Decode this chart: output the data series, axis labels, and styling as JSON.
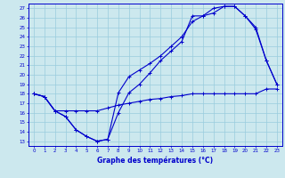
{
  "xlabel": "Graphe des températures (°C)",
  "bg_color": "#cce8ee",
  "grid_color": "#99ccdd",
  "line_color": "#0000cc",
  "ylim": [
    12.5,
    27.5
  ],
  "xlim": [
    -0.5,
    23.5
  ],
  "yticks": [
    13,
    14,
    15,
    16,
    17,
    18,
    19,
    20,
    21,
    22,
    23,
    24,
    25,
    26,
    27
  ],
  "xticks": [
    0,
    1,
    2,
    3,
    4,
    5,
    6,
    7,
    8,
    9,
    10,
    11,
    12,
    13,
    14,
    15,
    16,
    17,
    18,
    19,
    20,
    21,
    22,
    23
  ],
  "series1_x": [
    0,
    1,
    2,
    3,
    4,
    5,
    6,
    7,
    8,
    9,
    10,
    11,
    12,
    13,
    14,
    15,
    16,
    17,
    18,
    19,
    20,
    21,
    22,
    23
  ],
  "series1_y": [
    18,
    17.7,
    16.2,
    15.6,
    14.2,
    13.5,
    13.0,
    13.2,
    16.0,
    18.1,
    19.0,
    20.2,
    21.5,
    22.5,
    23.5,
    26.2,
    26.2,
    27.0,
    27.2,
    27.2,
    26.2,
    24.8,
    21.5,
    19.0
  ],
  "series2_x": [
    0,
    1,
    2,
    3,
    4,
    5,
    6,
    7,
    8,
    9,
    10,
    11,
    12,
    13,
    14,
    15,
    16,
    17,
    18,
    19,
    20,
    21,
    22,
    23
  ],
  "series2_y": [
    18,
    17.7,
    16.2,
    15.6,
    14.2,
    13.5,
    13.0,
    13.2,
    18.1,
    19.8,
    20.5,
    21.2,
    22.0,
    23.0,
    24.0,
    25.6,
    26.2,
    26.5,
    27.2,
    27.2,
    26.2,
    25.0,
    21.5,
    19.0
  ],
  "series3_x": [
    0,
    1,
    2,
    3,
    4,
    5,
    6,
    7,
    8,
    9,
    10,
    11,
    12,
    13,
    14,
    15,
    16,
    17,
    18,
    19,
    20,
    21,
    22,
    23
  ],
  "series3_y": [
    18,
    17.7,
    16.2,
    16.2,
    16.2,
    16.2,
    16.2,
    16.5,
    16.8,
    17.0,
    17.2,
    17.4,
    17.5,
    17.7,
    17.8,
    18.0,
    18.0,
    18.0,
    18.0,
    18.0,
    18.0,
    18.0,
    18.5,
    18.5
  ]
}
